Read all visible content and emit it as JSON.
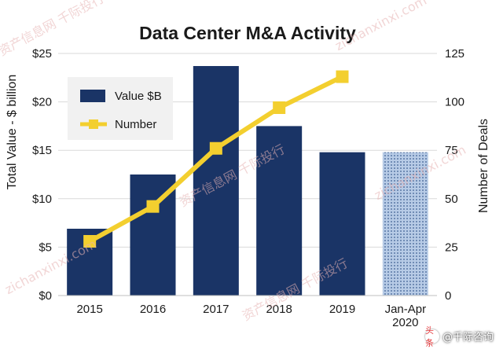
{
  "chart_data": {
    "type": "bar",
    "title": "Data Center M&A Activity",
    "categories": [
      "2015",
      "2016",
      "2017",
      "2018",
      "2019",
      "Jan-Apr 2020"
    ],
    "ylabel": "Total Value - $ billion",
    "y2label": "Number of Deals",
    "ylim": [
      0,
      25
    ],
    "y2lim": [
      0,
      125
    ],
    "yticks": [
      "$0",
      "$5",
      "$10",
      "$15",
      "$20",
      "$25"
    ],
    "y2ticks": [
      "0",
      "25",
      "50",
      "75",
      "100",
      "125"
    ],
    "series": [
      {
        "name": "Value $B",
        "type": "bar",
        "axis": "left",
        "values": [
          6.9,
          12.5,
          23.7,
          17.5,
          14.8,
          14.8
        ],
        "color": "#1a3466"
      },
      {
        "name": "Number",
        "type": "line",
        "axis": "right",
        "values": [
          28,
          46,
          76,
          97,
          113,
          null
        ],
        "color": "#f3cf2f"
      }
    ],
    "last_bar_pattern": "dotted-light-blue",
    "grid": true,
    "legend_position": "top-left"
  },
  "watermarks": [
    "资产信息网 千际投行",
    "zichanxinxi.com"
  ],
  "branding": {
    "icon_text": "头条",
    "label": "@千际咨询"
  }
}
